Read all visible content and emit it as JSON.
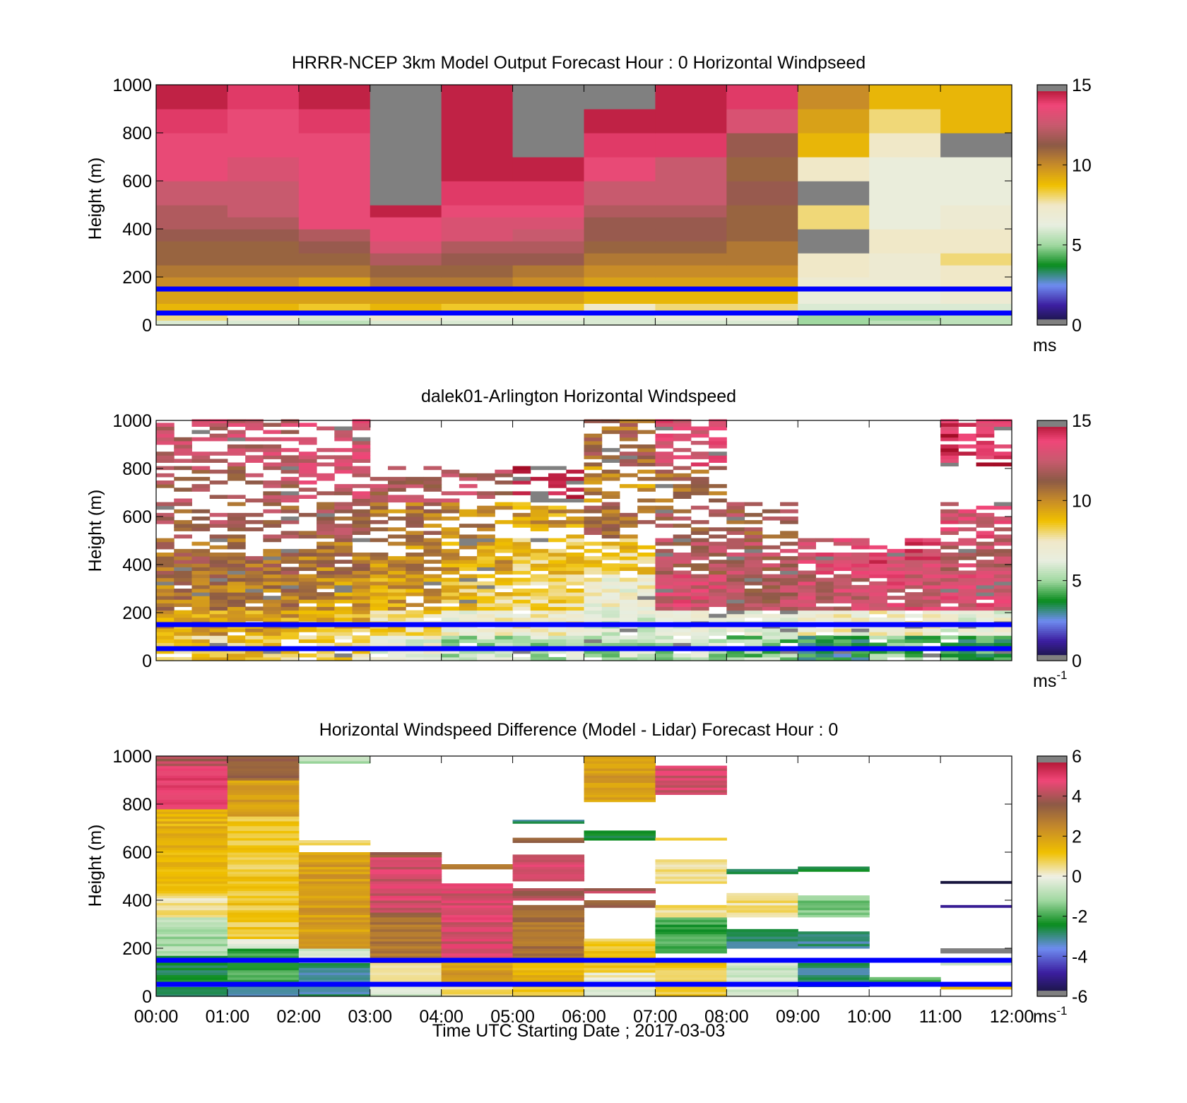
{
  "colors": {
    "speed_ramp": [
      "#141432",
      "#3c1ea0",
      "#6e8cf0",
      "#0a8c1e",
      "#a0d8a0",
      "#e8eee0",
      "#f0e8c8",
      "#f0c000",
      "#c88c28",
      "#8c5a46",
      "#c85a6e",
      "#f04678",
      "#a00a23",
      "#808080"
    ],
    "diff_ramp": [
      "#141432",
      "#3c1ea0",
      "#6e8cf0",
      "#0a8c1e",
      "#a0d8a0",
      "#f0f0e6",
      "#f0c000",
      "#c88c28",
      "#8c5a46",
      "#f04678",
      "#a00a23",
      "#808080"
    ],
    "boundary_lines": "#0000ff"
  },
  "chart_data": [
    {
      "type": "heatmap",
      "title": "HRRR-NCEP 3km Model Output   Forecast Hour : 0 Horizontal Windpseed",
      "ylabel": "Height (m)",
      "ylim": [
        0,
        1000
      ],
      "yticks": [
        "0",
        "200",
        "400",
        "600",
        "800",
        "1000"
      ],
      "xlim_hours": [
        0,
        12
      ],
      "colorbar": {
        "range": [
          0,
          15
        ],
        "ticks": [
          "0",
          "5",
          "10",
          "15"
        ],
        "unit": "ms",
        "unit_sup": ""
      },
      "column_hours": [
        0,
        1,
        2,
        3,
        4,
        5,
        6,
        7,
        8,
        9,
        10,
        11
      ],
      "row_bottoms_m": [
        0,
        20,
        50,
        90,
        140,
        200,
        250,
        300,
        350,
        400,
        450,
        500,
        600,
        700,
        800,
        900
      ],
      "cells_ms": [
        [
          6,
          6,
          5.5,
          6,
          6,
          6,
          6,
          6,
          6,
          5,
          5.5,
          5.5
        ],
        [
          8,
          7,
          6,
          7.5,
          6.5,
          6.5,
          6,
          6.5,
          6.5,
          5,
          5,
          5.5
        ],
        [
          9,
          9,
          8.5,
          9,
          8.5,
          8.5,
          7.5,
          8,
          8,
          6,
          6,
          6
        ],
        [
          9.5,
          9.5,
          9.5,
          9.5,
          9.5,
          9.5,
          9,
          9,
          9,
          6.5,
          6.5,
          7
        ],
        [
          10,
          10,
          9.5,
          10.5,
          10.5,
          10,
          9.5,
          9.5,
          9.5,
          7,
          7,
          7.5
        ],
        [
          10.5,
          10.5,
          10.5,
          11,
          11,
          10.5,
          10,
          10,
          10,
          7.5,
          7,
          7.5
        ],
        [
          11,
          11,
          11,
          12,
          11.5,
          11.5,
          10.5,
          10.5,
          10.5,
          7.5,
          7,
          8
        ],
        [
          11,
          11,
          11.5,
          13,
          12,
          12,
          11,
          11,
          10.5,
          15,
          7.5,
          7.5
        ],
        [
          11.5,
          11.5,
          12,
          13.5,
          13,
          12.5,
          11.5,
          11.5,
          11,
          15,
          7.5,
          7.5
        ],
        [
          12,
          12,
          13.5,
          13.5,
          13,
          13,
          11.5,
          11.5,
          11,
          8,
          6.5,
          7
        ],
        [
          12,
          12.5,
          13.5,
          14.5,
          13.5,
          13.5,
          12,
          12,
          11,
          8,
          6.5,
          7
        ],
        [
          12.5,
          12.5,
          13.5,
          15,
          14,
          14,
          12.5,
          12.5,
          11.5,
          15,
          6.5,
          6.5
        ],
        [
          13.5,
          13,
          13.5,
          15,
          14.5,
          14.5,
          13.5,
          12.5,
          11,
          7.5,
          6.5,
          6.5
        ],
        [
          13.5,
          13.5,
          13.5,
          15,
          14.5,
          15,
          14,
          14,
          11.5,
          9,
          7.5,
          15
        ],
        [
          14,
          13.5,
          14,
          15,
          14.5,
          15,
          14.5,
          14.5,
          13,
          9.5,
          8,
          9
        ],
        [
          14.5,
          14,
          14.5,
          15,
          14.5,
          15,
          15,
          14.5,
          14,
          10,
          9,
          9
        ]
      ],
      "boundary_lines_m": [
        50,
        150
      ]
    },
    {
      "type": "heatmap",
      "title": "dalek01-Arlington  Horizontal Windspeed",
      "ylabel": "Height (m)",
      "ylim": [
        0,
        1000
      ],
      "yticks": [
        "0",
        "200",
        "400",
        "600",
        "800",
        "1000"
      ],
      "xlim_hours": [
        0,
        12
      ],
      "colorbar": {
        "range": [
          0,
          15
        ],
        "ticks": [
          "0",
          "5",
          "10",
          "15"
        ],
        "unit": "ms",
        "unit_sup": "-1"
      },
      "profile_interval_hours": 0.25,
      "range_gate_m": 15,
      "hourly_mean_profile_ms": [
        [
          8.5,
          9.5,
          10.5,
          11,
          11.5,
          12,
          12.5
        ],
        [
          8.5,
          9.5,
          10.5,
          11,
          11.5,
          12,
          12.5
        ],
        [
          8,
          9,
          10,
          10.5,
          11.5,
          12.5,
          13
        ],
        [
          6.5,
          8,
          9.5,
          10,
          10.5,
          12,
          null
        ],
        [
          5.5,
          7,
          8.5,
          9.5,
          10,
          12,
          null
        ],
        [
          5.5,
          7,
          8,
          8.5,
          9.5,
          15,
          null
        ],
        [
          5.5,
          6,
          7,
          8.5,
          11,
          10,
          11
        ],
        [
          5.5,
          6.5,
          13,
          12,
          11.5,
          11,
          13
        ],
        [
          5,
          6.5,
          12,
          12,
          11.5,
          null,
          null
        ],
        [
          3.5,
          7,
          12.5,
          13,
          null,
          null,
          null
        ],
        [
          4.5,
          7,
          13,
          13.5,
          null,
          null,
          null
        ],
        [
          4,
          6.5,
          13,
          12.5,
          13,
          null,
          14
        ]
      ],
      "profile_level_tops_m": [
        100,
        200,
        350,
        500,
        650,
        800,
        1000
      ],
      "data_coverage_top_m": [
        1000,
        1000,
        1000,
        820,
        780,
        960,
        1000,
        1000,
        880,
        640,
        620,
        1000
      ],
      "boundary_lines_m": [
        50,
        150
      ]
    },
    {
      "type": "heatmap",
      "title": "Horizontal Windspeed Difference (Model - Lidar) Forecast Hour : 0",
      "ylabel": "Height (m)",
      "xlabel": "Time UTC  Starting Date ; 2017-03-03",
      "ylim": [
        0,
        1000
      ],
      "yticks": [
        "0",
        "200",
        "400",
        "600",
        "800",
        "1000"
      ],
      "xlim_hours": [
        0,
        12
      ],
      "xticks": [
        "00:00",
        "01:00",
        "02:00",
        "03:00",
        "04:00",
        "05:00",
        "06:00",
        "07:00",
        "08:00",
        "09:00",
        "10:00",
        "11:00",
        "12:00"
      ],
      "colorbar": {
        "range": [
          -6,
          6
        ],
        "ticks": [
          "-6",
          "-4",
          "-2",
          "0",
          "2",
          "4",
          "6"
        ],
        "unit": "ms",
        "unit_sup": "-1"
      },
      "segments": [
        {
          "hour": 0,
          "from_m": 0,
          "to_m": 50,
          "diff_ms": -3
        },
        {
          "hour": 0,
          "from_m": 50,
          "to_m": 170,
          "diff_ms": -2.5
        },
        {
          "hour": 0,
          "from_m": 170,
          "to_m": 330,
          "diff_ms": -1
        },
        {
          "hour": 0,
          "from_m": 330,
          "to_m": 430,
          "diff_ms": 0.5
        },
        {
          "hour": 0,
          "from_m": 430,
          "to_m": 780,
          "diff_ms": 1.5
        },
        {
          "hour": 0,
          "from_m": 780,
          "to_m": 960,
          "diff_ms": 5
        },
        {
          "hour": 0,
          "from_m": 960,
          "to_m": 1000,
          "diff_ms": 4
        },
        {
          "hour": 1,
          "from_m": 0,
          "to_m": 50,
          "diff_ms": -3
        },
        {
          "hour": 1,
          "from_m": 50,
          "to_m": 200,
          "diff_ms": -2
        },
        {
          "hour": 1,
          "from_m": 200,
          "to_m": 240,
          "diff_ms": 0
        },
        {
          "hour": 1,
          "from_m": 240,
          "to_m": 750,
          "diff_ms": 1
        },
        {
          "hour": 1,
          "from_m": 750,
          "to_m": 900,
          "diff_ms": 2
        },
        {
          "hour": 1,
          "from_m": 900,
          "to_m": 1000,
          "diff_ms": 3.5
        },
        {
          "hour": 2,
          "from_m": 0,
          "to_m": 50,
          "diff_ms": -3
        },
        {
          "hour": 2,
          "from_m": 50,
          "to_m": 140,
          "diff_ms": -3
        },
        {
          "hour": 2,
          "from_m": 140,
          "to_m": 200,
          "diff_ms": -0.5
        },
        {
          "hour": 2,
          "from_m": 200,
          "to_m": 600,
          "diff_ms": 2
        },
        {
          "hour": 2,
          "from_m": 630,
          "to_m": 650,
          "diff_ms": 0.5
        },
        {
          "hour": 2,
          "from_m": 970,
          "to_m": 1000,
          "diff_ms": -1
        },
        {
          "hour": 3,
          "from_m": 0,
          "to_m": 50,
          "diff_ms": -0.5
        },
        {
          "hour": 3,
          "from_m": 50,
          "to_m": 140,
          "diff_ms": 0.5
        },
        {
          "hour": 3,
          "from_m": 140,
          "to_m": 350,
          "diff_ms": 3
        },
        {
          "hour": 3,
          "from_m": 350,
          "to_m": 580,
          "diff_ms": 4.5
        },
        {
          "hour": 3,
          "from_m": 580,
          "to_m": 600,
          "diff_ms": 3.5
        },
        {
          "hour": 4,
          "from_m": 0,
          "to_m": 50,
          "diff_ms": 0.5
        },
        {
          "hour": 4,
          "from_m": 50,
          "to_m": 150,
          "diff_ms": 2
        },
        {
          "hour": 4,
          "from_m": 150,
          "to_m": 470,
          "diff_ms": 4.5
        },
        {
          "hour": 4,
          "from_m": 530,
          "to_m": 550,
          "diff_ms": 2.5
        },
        {
          "hour": 5,
          "from_m": 0,
          "to_m": 50,
          "diff_ms": 1
        },
        {
          "hour": 5,
          "from_m": 50,
          "to_m": 150,
          "diff_ms": 1.5
        },
        {
          "hour": 5,
          "from_m": 150,
          "to_m": 380,
          "diff_ms": 3
        },
        {
          "hour": 5,
          "from_m": 400,
          "to_m": 450,
          "diff_ms": 4
        },
        {
          "hour": 5,
          "from_m": 480,
          "to_m": 590,
          "diff_ms": 4.5
        },
        {
          "hour": 5,
          "from_m": 640,
          "to_m": 660,
          "diff_ms": 3.5
        },
        {
          "hour": 5,
          "from_m": 720,
          "to_m": 735,
          "diff_ms": -3
        },
        {
          "hour": 6,
          "from_m": 0,
          "to_m": 100,
          "diff_ms": 0
        },
        {
          "hour": 6,
          "from_m": 100,
          "to_m": 240,
          "diff_ms": 1
        },
        {
          "hour": 6,
          "from_m": 370,
          "to_m": 400,
          "diff_ms": 3.5
        },
        {
          "hour": 6,
          "from_m": 430,
          "to_m": 450,
          "diff_ms": 4
        },
        {
          "hour": 6,
          "from_m": 650,
          "to_m": 690,
          "diff_ms": -2.5
        },
        {
          "hour": 6,
          "from_m": 810,
          "to_m": 1000,
          "diff_ms": 2
        },
        {
          "hour": 7,
          "from_m": 0,
          "to_m": 150,
          "diff_ms": 1
        },
        {
          "hour": 7,
          "from_m": 180,
          "to_m": 330,
          "diff_ms": -2
        },
        {
          "hour": 7,
          "from_m": 330,
          "to_m": 380,
          "diff_ms": 0.5
        },
        {
          "hour": 7,
          "from_m": 470,
          "to_m": 570,
          "diff_ms": 0.5
        },
        {
          "hour": 7,
          "from_m": 650,
          "to_m": 660,
          "diff_ms": 1
        },
        {
          "hour": 7,
          "from_m": 840,
          "to_m": 960,
          "diff_ms": 4.5
        },
        {
          "hour": 8,
          "from_m": 0,
          "to_m": 150,
          "diff_ms": -0.5
        },
        {
          "hour": 8,
          "from_m": 200,
          "to_m": 280,
          "diff_ms": -3
        },
        {
          "hour": 8,
          "from_m": 330,
          "to_m": 430,
          "diff_ms": 0.5
        },
        {
          "hour": 8,
          "from_m": 510,
          "to_m": 530,
          "diff_ms": -2.5
        },
        {
          "hour": 9,
          "from_m": 40,
          "to_m": 150,
          "diff_ms": -3
        },
        {
          "hour": 9,
          "from_m": 330,
          "to_m": 420,
          "diff_ms": -1.5
        },
        {
          "hour": 9,
          "from_m": 200,
          "to_m": 270,
          "diff_ms": -3
        },
        {
          "hour": 9,
          "from_m": 520,
          "to_m": 540,
          "diff_ms": -2.5
        },
        {
          "hour": 10,
          "from_m": 60,
          "to_m": 80,
          "diff_ms": -2
        },
        {
          "hour": 11,
          "from_m": 30,
          "to_m": 60,
          "diff_ms": 1.5
        },
        {
          "hour": 11,
          "from_m": 130,
          "to_m": 160,
          "diff_ms": -0.5
        },
        {
          "hour": 11,
          "from_m": 180,
          "to_m": 200,
          "diff_ms": 6
        },
        {
          "hour": 11,
          "from_m": 370,
          "to_m": 380,
          "diff_ms": -5
        },
        {
          "hour": 11,
          "from_m": 470,
          "to_m": 480,
          "diff_ms": -6
        }
      ],
      "boundary_lines_m": [
        50,
        150
      ]
    }
  ]
}
